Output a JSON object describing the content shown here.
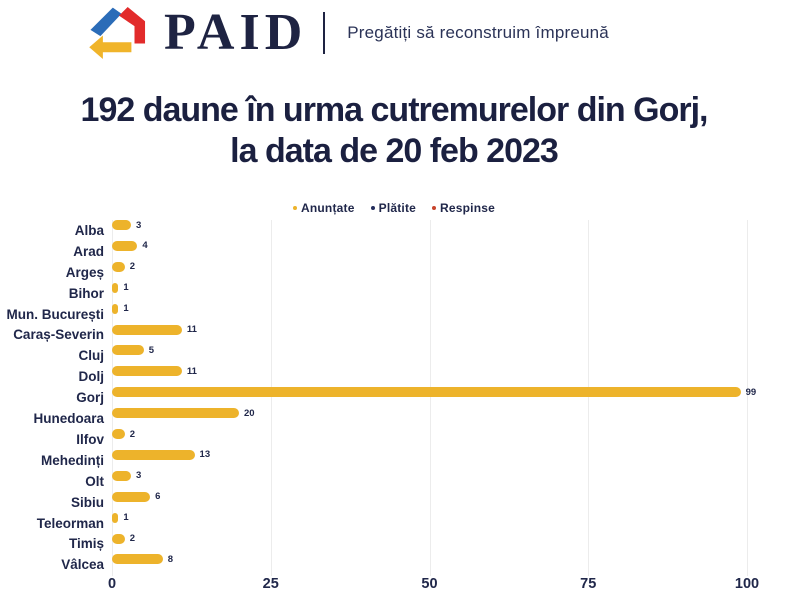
{
  "header": {
    "brand": "PAID",
    "tagline": "Pregătiți să reconstruim împreună",
    "logo_colors": {
      "roof": "#2B6CB8",
      "wall": "#E22B2B",
      "base": "#F0B42A"
    }
  },
  "title": {
    "line1": "192 daune în urma cutremurelor din Gorj,",
    "line2": "la data de 20 feb 2023"
  },
  "legend": [
    {
      "label": "Anunțate",
      "color": "#EDB32B"
    },
    {
      "label": "Plătite",
      "color": "#232D5C"
    },
    {
      "label": "Respinse",
      "color": "#C8442C"
    }
  ],
  "chart_data": {
    "type": "bar",
    "orientation": "horizontal",
    "title": "192 daune în urma cutremurelor din Gorj, la data de 20 feb 2023",
    "categories": [
      "Alba",
      "Arad",
      "Argeș",
      "Bihor",
      "Mun. București",
      "Caraș-Severin",
      "Cluj",
      "Dolj",
      "Gorj",
      "Hunedoara",
      "Ilfov",
      "Mehedinți",
      "Olt",
      "Sibiu",
      "Teleorman",
      "Timiș",
      "Vâlcea"
    ],
    "series": [
      {
        "name": "Anunțate",
        "color": "#EDB32B",
        "values": [
          3,
          4,
          2,
          1,
          1,
          11,
          5,
          11,
          99,
          20,
          2,
          13,
          3,
          6,
          1,
          2,
          8
        ]
      }
    ],
    "legend_entries": [
      "Anunțate",
      "Plătite",
      "Respinse"
    ],
    "legend_position": "top-center",
    "x_ticks": [
      0,
      25,
      50,
      75,
      100
    ],
    "xlim": [
      0,
      100
    ],
    "grid": "vertical-faint",
    "value_labels": true,
    "total": 192
  }
}
